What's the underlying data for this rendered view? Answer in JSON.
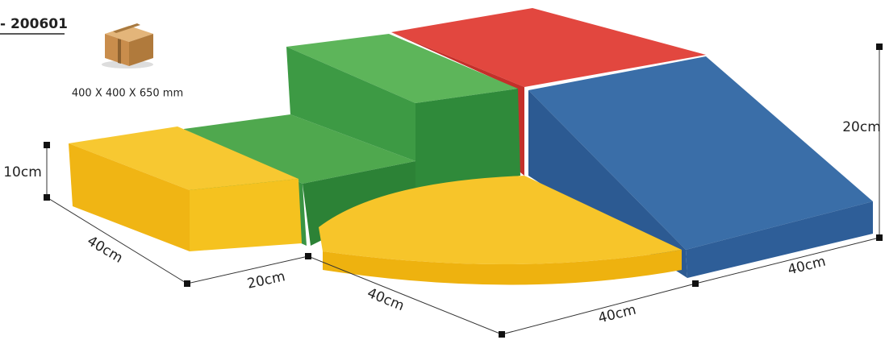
{
  "header": {
    "code": "- 200601",
    "box_size": "400 X 400 X 650 mm"
  },
  "dimensions": [
    "10cm",
    "40cm",
    "20cm",
    "40cm",
    "40cm",
    "40cm",
    "20cm"
  ]
}
